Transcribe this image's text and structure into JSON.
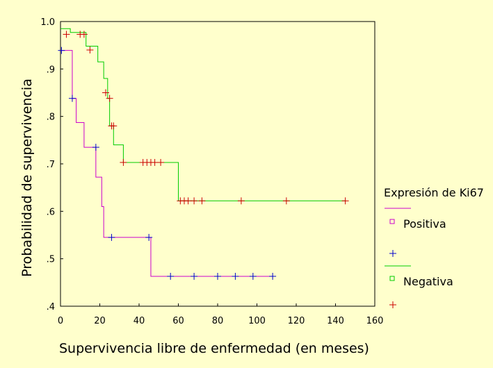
{
  "chart_data": {
    "type": "line",
    "subtype": "kaplan-meier step",
    "xlabel": "Supervivencia libre de enfermedad (en meses)",
    "ylabel": "Probabilidad de supervivencia",
    "xlim": [
      0,
      160
    ],
    "ylim": [
      0.4,
      1.0
    ],
    "x_ticks": [
      "0",
      "20",
      "40",
      "60",
      "80",
      "100",
      "120",
      "140",
      "160"
    ],
    "x_tick_values": [
      0,
      20,
      40,
      60,
      80,
      100,
      120,
      140,
      160
    ],
    "y_ticks": [
      "1.0",
      ".9",
      ".8",
      ".7",
      ".6",
      ".5",
      ".4"
    ],
    "y_tick_values": [
      1.0,
      0.9,
      0.8,
      0.7,
      0.6,
      0.5,
      0.4
    ],
    "grid": false,
    "legend": {
      "title": "Expresión de Ki67",
      "placement": "right",
      "items": [
        {
          "label": "Positiva",
          "line_color": "#cc00cc",
          "marker_color": "#0000cc",
          "marker_symbol": "square"
        },
        {
          "label": "Negativa",
          "line_color": "#00cc00",
          "marker_color": "#cc0000",
          "marker_symbol": "square"
        }
      ]
    },
    "series": [
      {
        "name": "Positiva",
        "line_color": "#cc00cc",
        "censor_color": "#0000cc",
        "steps": [
          [
            0,
            0.939
          ],
          [
            6,
            0.838
          ],
          [
            8,
            0.787
          ],
          [
            12,
            0.735
          ],
          [
            18,
            0.672
          ],
          [
            21,
            0.61
          ],
          [
            22,
            0.545
          ],
          [
            46,
            0.463
          ],
          [
            108,
            0.463
          ]
        ],
        "censored": [
          [
            0.5,
            0.939
          ],
          [
            6,
            0.838
          ],
          [
            18,
            0.735
          ],
          [
            26,
            0.545
          ],
          [
            45,
            0.545
          ],
          [
            56,
            0.463
          ],
          [
            68,
            0.463
          ],
          [
            80,
            0.463
          ],
          [
            89,
            0.463
          ],
          [
            98,
            0.463
          ],
          [
            108,
            0.463
          ]
        ]
      },
      {
        "name": "Negativa",
        "line_color": "#00cc00",
        "censor_color": "#cc0000",
        "steps": [
          [
            0,
            0.985
          ],
          [
            5,
            0.977
          ],
          [
            13,
            0.948
          ],
          [
            19,
            0.915
          ],
          [
            22,
            0.88
          ],
          [
            24,
            0.838
          ],
          [
            25,
            0.78
          ],
          [
            27,
            0.74
          ],
          [
            32,
            0.703
          ],
          [
            60,
            0.622
          ],
          [
            145,
            0.622
          ]
        ],
        "censored": [
          [
            3,
            0.973
          ],
          [
            10,
            0.973
          ],
          [
            12,
            0.973
          ],
          [
            15,
            0.94
          ],
          [
            23,
            0.85
          ],
          [
            25,
            0.838
          ],
          [
            26,
            0.78
          ],
          [
            27,
            0.78
          ],
          [
            32,
            0.703
          ],
          [
            42,
            0.703
          ],
          [
            44,
            0.703
          ],
          [
            46,
            0.703
          ],
          [
            48,
            0.703
          ],
          [
            51,
            0.703
          ],
          [
            61,
            0.622
          ],
          [
            63,
            0.622
          ],
          [
            65,
            0.622
          ],
          [
            68,
            0.622
          ],
          [
            72,
            0.622
          ],
          [
            92,
            0.622
          ],
          [
            115,
            0.622
          ],
          [
            145,
            0.622
          ]
        ]
      }
    ]
  }
}
